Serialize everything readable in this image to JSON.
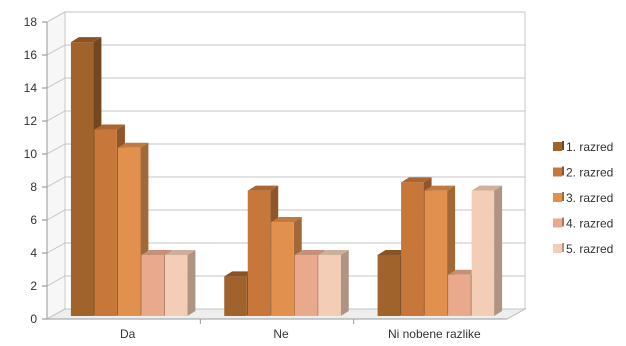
{
  "chart_data": {
    "type": "bar",
    "categories": [
      "Da",
      "Ne",
      "Ni nobene razlike"
    ],
    "series": [
      {
        "name": "1. razred",
        "values": [
          16.6,
          2.4,
          3.7
        ],
        "color": "#a0632c"
      },
      {
        "name": "2. razred",
        "values": [
          11.3,
          7.6,
          8.1
        ],
        "color": "#c8773a"
      },
      {
        "name": "3. razred",
        "values": [
          10.2,
          5.7,
          7.6
        ],
        "color": "#e2904d"
      },
      {
        "name": "4. razred",
        "values": [
          3.7,
          3.7,
          2.5
        ],
        "color": "#e8a98c"
      },
      {
        "name": "5. razred",
        "values": [
          3.7,
          3.7,
          7.6
        ],
        "color": "#f4cdb6"
      }
    ],
    "title": "",
    "xlabel": "",
    "ylabel": "",
    "ylim": [
      0,
      18
    ],
    "yticks": [
      0,
      2,
      4,
      6,
      8,
      10,
      12,
      14,
      16,
      18
    ],
    "grid": true,
    "legend": "right",
    "style": "3d-clustered-column"
  }
}
